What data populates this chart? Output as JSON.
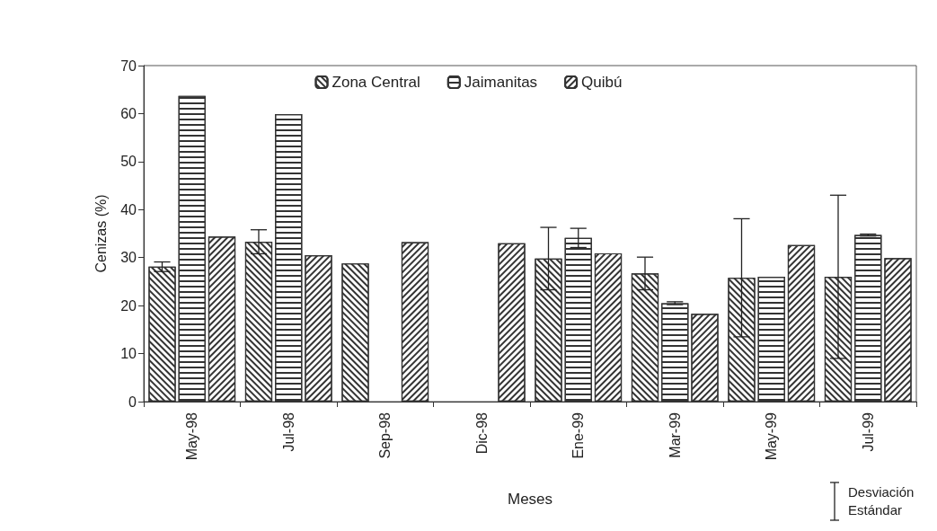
{
  "chart_data": {
    "type": "bar",
    "xlabel": "Meses",
    "ylabel": "Cenizas (%)",
    "categories": [
      "May-98",
      "Jul-98",
      "Sep-98",
      "Dic-98",
      "Ene-99",
      "Mar-99",
      "May-99",
      "Jul-99"
    ],
    "series": [
      {
        "name": "Zona Central",
        "color": "#333333",
        "values": [
          28.1,
          33.3,
          28.8,
          null,
          29.8,
          26.7,
          25.8,
          26.0
        ],
        "errors": [
          1.0,
          2.5,
          null,
          null,
          6.5,
          3.4,
          12.3,
          17.0
        ]
      },
      {
        "name": "Jaimanitas",
        "color": "#333333",
        "values": [
          63.7,
          59.9,
          null,
          null,
          34.1,
          20.5,
          26.0,
          34.7
        ],
        "errors": [
          null,
          null,
          null,
          null,
          2.0,
          0.3,
          null,
          0.2
        ]
      },
      {
        "name": "Quibú",
        "color": "#333333",
        "values": [
          34.4,
          30.5,
          33.2,
          33.0,
          30.9,
          18.3,
          32.6,
          29.9
        ]
      }
    ],
    "ylim": [
      0,
      70
    ],
    "yticks": [
      0,
      10,
      20,
      30,
      40,
      50,
      60,
      70
    ],
    "grid": false,
    "legend": "top",
    "annotations": [
      "Desviación Estándar"
    ]
  }
}
